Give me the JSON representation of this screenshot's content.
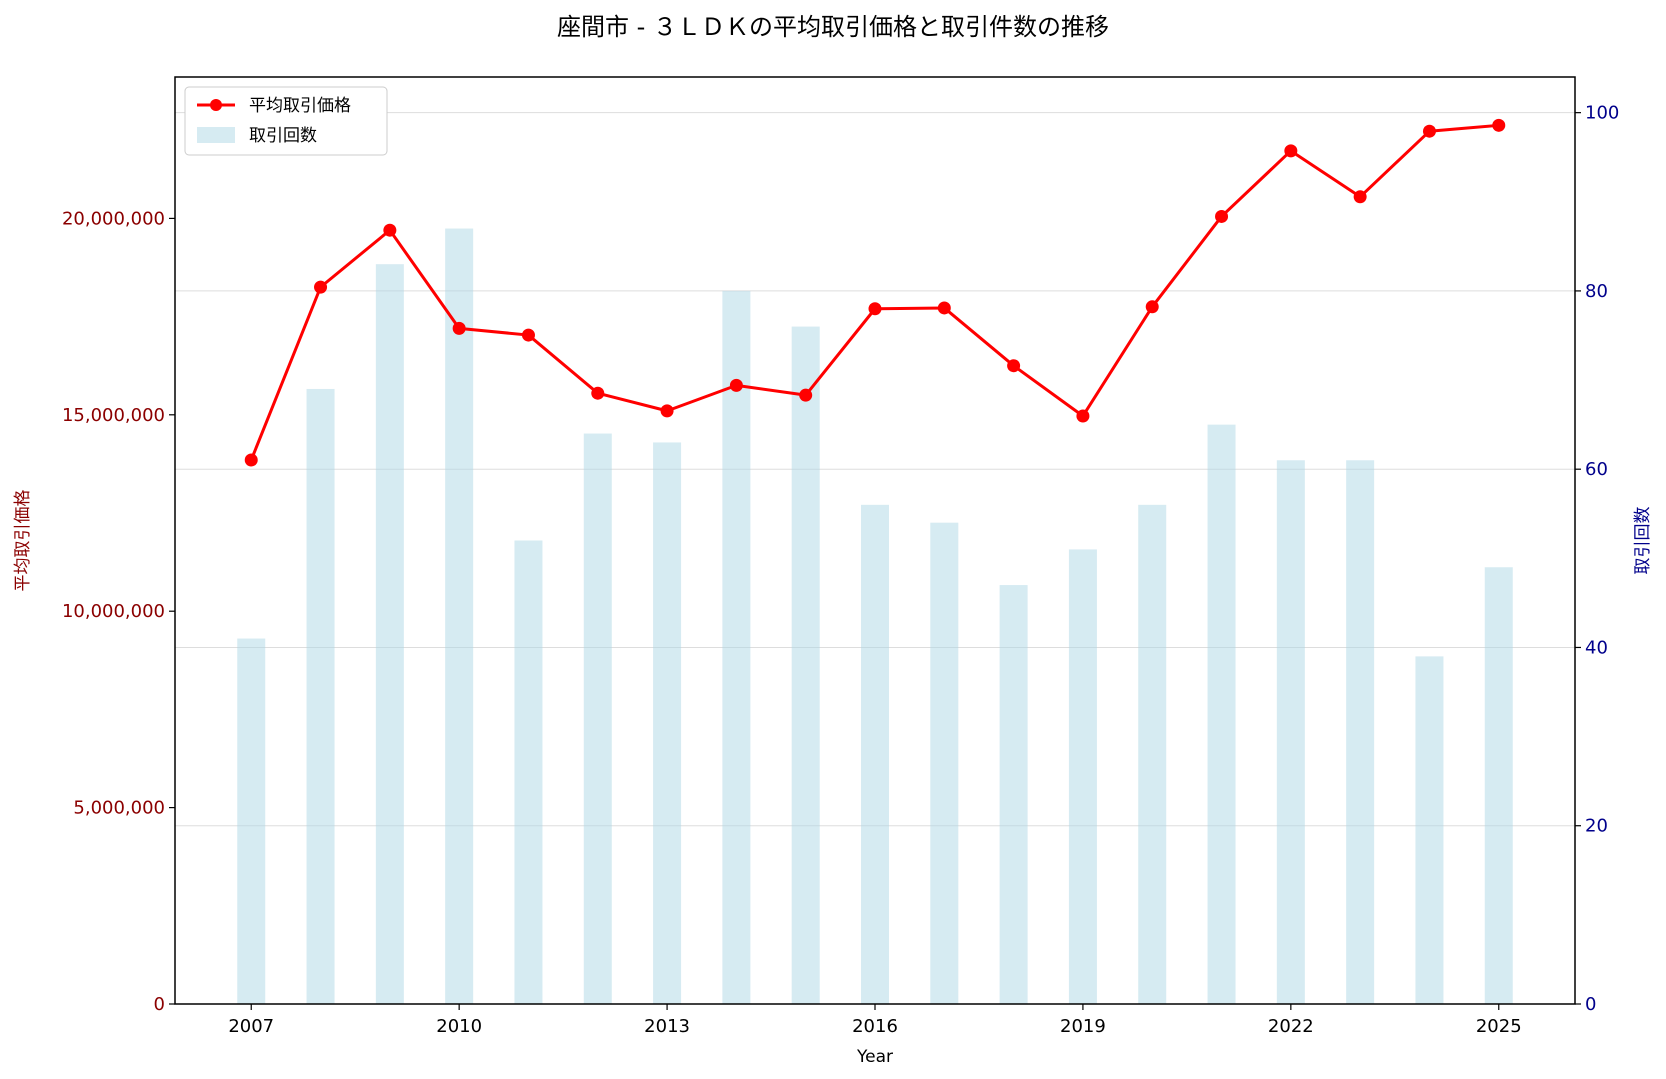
{
  "chart_data": {
    "type": "bar+line",
    "title": "座間市 - ３ＬＤＫの平均取引価格と取引件数の推移",
    "xlabel": "Year",
    "ylabel_left": "平均取引価格",
    "ylabel_right": "取引回数",
    "x": [
      2007,
      2008,
      2009,
      2010,
      2011,
      2012,
      2013,
      2014,
      2015,
      2016,
      2017,
      2018,
      2019,
      2020,
      2021,
      2022,
      2023,
      2024,
      2025
    ],
    "x_ticks": [
      "2007",
      "2010",
      "2013",
      "2016",
      "2019",
      "2022",
      "2025"
    ],
    "xlim": [
      2005.9,
      2026.1
    ],
    "ylim_left": [
      0,
      23600000
    ],
    "ylim_right": [
      0,
      104
    ],
    "left_ticks": [
      {
        "value": 0,
        "label": "0"
      },
      {
        "value": 5000000,
        "label": "5,000,000"
      },
      {
        "value": 10000000,
        "label": "10,000,000"
      },
      {
        "value": 15000000,
        "label": "15,000,000"
      },
      {
        "value": 20000000,
        "label": "20,000,000"
      }
    ],
    "right_ticks": [
      {
        "value": 0,
        "label": "0"
      },
      {
        "value": 20,
        "label": "20"
      },
      {
        "value": 40,
        "label": "40"
      },
      {
        "value": 60,
        "label": "60"
      },
      {
        "value": 80,
        "label": "80"
      },
      {
        "value": 100,
        "label": "100"
      }
    ],
    "grid": true,
    "legend_position": "top-left",
    "series": [
      {
        "name": "平均取引価格",
        "type": "line",
        "axis": "left",
        "color": "#ff0000",
        "values": [
          13850000,
          18250000,
          19700000,
          17200000,
          17030000,
          15550000,
          15100000,
          15750000,
          15500000,
          17700000,
          17720000,
          16250000,
          14970000,
          17750000,
          20050000,
          21720000,
          20550000,
          22220000,
          22370000
        ]
      },
      {
        "name": "取引回数",
        "type": "bar",
        "axis": "right",
        "color": "#add8e6",
        "values": [
          41,
          69,
          83,
          87,
          52,
          64,
          63,
          80,
          76,
          56,
          54,
          47,
          51,
          56,
          65,
          61,
          61,
          39,
          49
        ]
      }
    ]
  }
}
